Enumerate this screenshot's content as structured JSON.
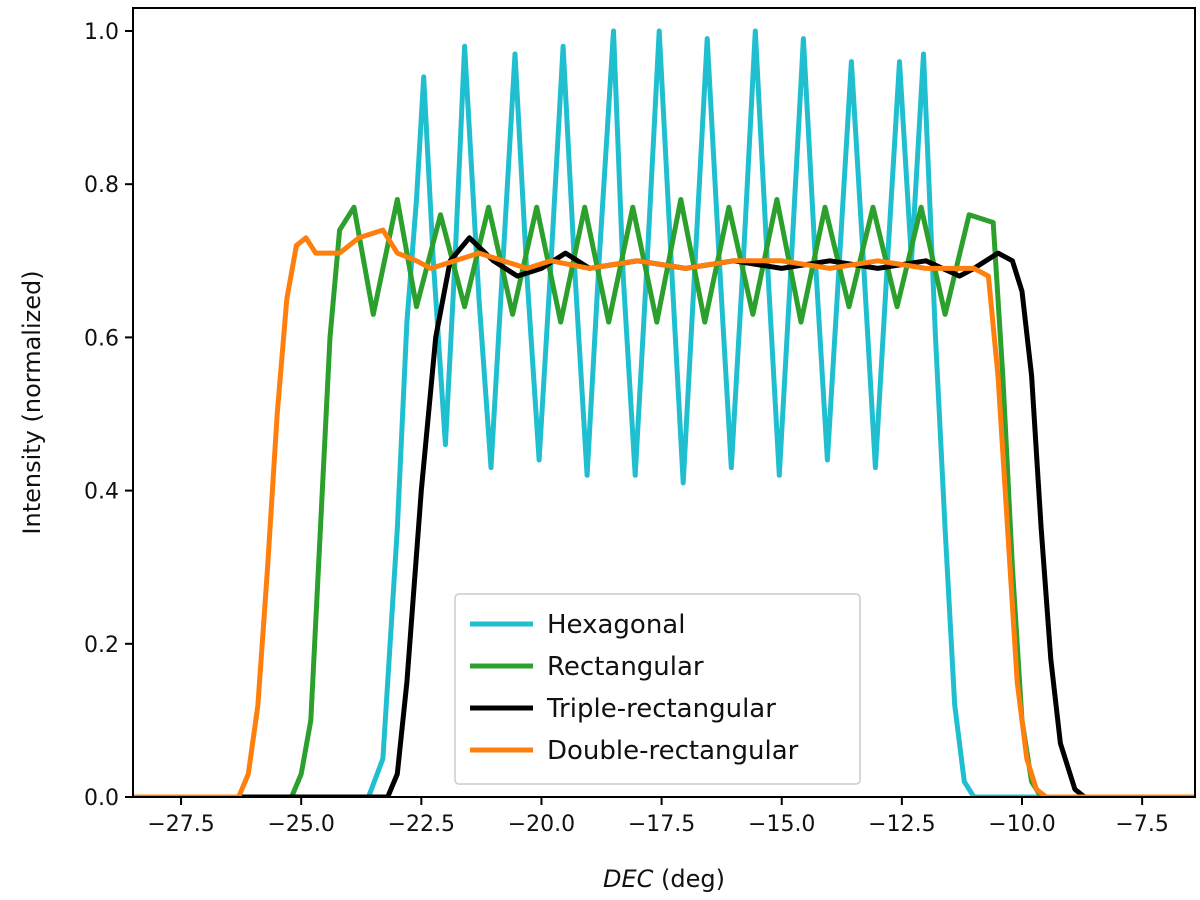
{
  "chart_data": {
    "type": "line",
    "xlabel_italic": "DEC",
    "xlabel_unit": " (deg)",
    "ylabel": "Intensity (normalized)",
    "xlim": [
      -28.5,
      -6.4
    ],
    "ylim": [
      0.0,
      1.03
    ],
    "x_ticks": [
      -27.5,
      -25.0,
      -22.5,
      -20.0,
      -17.5,
      -15.0,
      -12.5,
      -10.0,
      -7.5
    ],
    "x_tick_labels": [
      "−27.5",
      "−25.0",
      "−22.5",
      "−20.0",
      "−17.5",
      "−15.0",
      "−12.5",
      "−10.0",
      "−7.5"
    ],
    "y_ticks": [
      0.0,
      0.2,
      0.4,
      0.6,
      0.8,
      1.0
    ],
    "y_tick_labels": [
      "0.0",
      "0.2",
      "0.4",
      "0.6",
      "0.8",
      "1.0"
    ],
    "legend_position": "lower-center",
    "series": [
      {
        "name": "Hexagonal",
        "color": "#1fbfcf",
        "x": [
          -28.5,
          -23.6,
          -23.3,
          -23.0,
          -22.8,
          -22.6,
          -22.45,
          -22.25,
          -22.0,
          -21.8,
          -21.6,
          -21.3,
          -21.05,
          -20.8,
          -20.55,
          -20.3,
          -20.05,
          -19.8,
          -19.55,
          -19.3,
          -19.05,
          -18.8,
          -18.5,
          -18.3,
          -18.05,
          -17.8,
          -17.55,
          -17.3,
          -17.05,
          -16.8,
          -16.55,
          -16.3,
          -16.05,
          -15.8,
          -15.55,
          -15.3,
          -15.05,
          -14.8,
          -14.55,
          -14.3,
          -14.05,
          -13.8,
          -13.55,
          -13.3,
          -13.05,
          -12.8,
          -12.55,
          -12.3,
          -12.05,
          -11.8,
          -11.6,
          -11.4,
          -11.2,
          -11.0,
          -6.4
        ],
        "y": [
          0.0,
          0.0,
          0.05,
          0.35,
          0.62,
          0.78,
          0.94,
          0.7,
          0.46,
          0.7,
          0.98,
          0.65,
          0.43,
          0.7,
          0.97,
          0.68,
          0.44,
          0.7,
          0.98,
          0.68,
          0.42,
          0.7,
          1.0,
          0.68,
          0.42,
          0.7,
          1.0,
          0.7,
          0.41,
          0.7,
          0.99,
          0.7,
          0.43,
          0.7,
          1.0,
          0.7,
          0.42,
          0.7,
          0.99,
          0.7,
          0.44,
          0.7,
          0.96,
          0.7,
          0.43,
          0.7,
          0.96,
          0.7,
          0.97,
          0.6,
          0.35,
          0.12,
          0.02,
          0.0,
          0.0
        ]
      },
      {
        "name": "Rectangular",
        "color": "#2ca02c",
        "x": [
          -28.5,
          -25.2,
          -25.0,
          -24.8,
          -24.6,
          -24.4,
          -24.2,
          -23.9,
          -23.5,
          -23.0,
          -22.6,
          -22.1,
          -21.6,
          -21.1,
          -20.6,
          -20.1,
          -19.6,
          -19.1,
          -18.6,
          -18.1,
          -17.6,
          -17.1,
          -16.6,
          -16.1,
          -15.6,
          -15.1,
          -14.6,
          -14.1,
          -13.6,
          -13.1,
          -12.6,
          -12.1,
          -11.6,
          -11.1,
          -10.6,
          -10.4,
          -10.2,
          -10.0,
          -9.8,
          -9.6,
          -9.5,
          -6.4
        ],
        "y": [
          0.0,
          0.0,
          0.03,
          0.1,
          0.35,
          0.6,
          0.74,
          0.77,
          0.63,
          0.78,
          0.64,
          0.76,
          0.64,
          0.77,
          0.63,
          0.77,
          0.62,
          0.77,
          0.62,
          0.77,
          0.62,
          0.78,
          0.62,
          0.77,
          0.63,
          0.78,
          0.62,
          0.77,
          0.64,
          0.77,
          0.64,
          0.77,
          0.63,
          0.76,
          0.75,
          0.55,
          0.3,
          0.1,
          0.02,
          0.0,
          0.0,
          0.0
        ]
      },
      {
        "name": "Triple-rectangular",
        "color": "#000000",
        "x": [
          -28.5,
          -23.2,
          -23.0,
          -22.8,
          -22.5,
          -22.2,
          -21.9,
          -21.5,
          -21.0,
          -20.5,
          -20.0,
          -19.5,
          -19.0,
          -18.0,
          -17.0,
          -16.0,
          -15.0,
          -14.0,
          -13.0,
          -12.0,
          -11.3,
          -11.0,
          -10.5,
          -10.2,
          -10.0,
          -9.8,
          -9.6,
          -9.4,
          -9.2,
          -8.9,
          -8.7,
          -6.4
        ],
        "y": [
          0.0,
          0.0,
          0.03,
          0.15,
          0.4,
          0.6,
          0.7,
          0.73,
          0.7,
          0.68,
          0.69,
          0.71,
          0.69,
          0.7,
          0.69,
          0.7,
          0.69,
          0.7,
          0.69,
          0.7,
          0.68,
          0.69,
          0.71,
          0.7,
          0.66,
          0.55,
          0.35,
          0.18,
          0.07,
          0.01,
          0.0,
          0.0
        ]
      },
      {
        "name": "Double-rectangular",
        "color": "#ff7f0e",
        "x": [
          -28.5,
          -26.3,
          -26.1,
          -25.9,
          -25.7,
          -25.5,
          -25.3,
          -25.1,
          -24.9,
          -24.7,
          -24.2,
          -23.8,
          -23.3,
          -23.0,
          -22.6,
          -22.3,
          -21.8,
          -21.3,
          -20.8,
          -20.3,
          -19.8,
          -19.0,
          -18.0,
          -17.0,
          -16.0,
          -15.0,
          -14.0,
          -13.0,
          -12.0,
          -11.0,
          -10.7,
          -10.5,
          -10.3,
          -10.1,
          -9.9,
          -9.7,
          -9.5,
          -6.4
        ],
        "y": [
          0.0,
          0.0,
          0.03,
          0.12,
          0.3,
          0.5,
          0.65,
          0.72,
          0.73,
          0.71,
          0.71,
          0.73,
          0.74,
          0.71,
          0.7,
          0.69,
          0.7,
          0.71,
          0.7,
          0.69,
          0.7,
          0.69,
          0.7,
          0.69,
          0.7,
          0.7,
          0.69,
          0.7,
          0.69,
          0.69,
          0.68,
          0.55,
          0.35,
          0.15,
          0.05,
          0.01,
          0.0,
          0.0
        ]
      }
    ]
  }
}
